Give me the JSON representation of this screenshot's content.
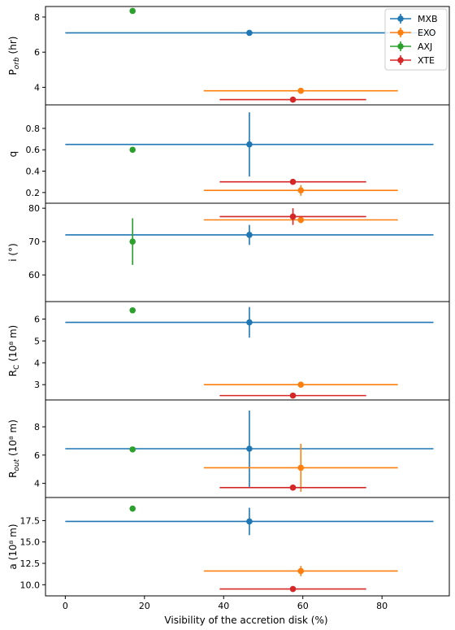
{
  "chart_data": {
    "type": "scatter",
    "xlabel": "Visibility of the accretion disk (%)",
    "xlim": [
      -5,
      97
    ],
    "xticks": [
      0,
      20,
      40,
      60,
      80
    ],
    "legend": {
      "placement": "top-right",
      "entries": [
        "MXB",
        "EXO",
        "AXJ",
        "XTE"
      ]
    },
    "series": [
      {
        "name": "MXB",
        "color": "#1f77b4",
        "x": 46.5,
        "xerr": [
          46.5,
          46.5
        ]
      },
      {
        "name": "EXO",
        "color": "#ff7f0e",
        "x": 59.5,
        "xerr": [
          24.5,
          24.5
        ]
      },
      {
        "name": "AXJ",
        "color": "#2ca02c",
        "x": 17,
        "xerr": [
          0,
          0
        ]
      },
      {
        "name": "XTE",
        "color": "#d62728",
        "x": 57.5,
        "xerr": [
          18.5,
          18.5
        ]
      }
    ],
    "panels": [
      {
        "ylabel_main": "P",
        "ylabel_sub": "orb",
        "ylabel_tail": " (hr)",
        "ylim": [
          3.0,
          8.6
        ],
        "yticks": [
          4,
          6,
          8
        ],
        "ytick_labels": [
          "4",
          "6",
          "8"
        ],
        "y": {
          "MXB": 7.1,
          "EXO": 3.8,
          "AXJ": 8.35,
          "XTE": 3.3
        },
        "yerr": {
          "MXB": 0,
          "EXO": 0,
          "AXJ": 0,
          "XTE": 0
        }
      },
      {
        "ylabel_main": "q",
        "ylabel_sub": "",
        "ylabel_tail": "",
        "ylim": [
          0.1,
          1.02
        ],
        "yticks": [
          0.2,
          0.4,
          0.6,
          0.8
        ],
        "ytick_labels": [
          "0.2",
          "0.4",
          "0.6",
          "0.8"
        ],
        "y": {
          "MXB": 0.65,
          "EXO": 0.22,
          "AXJ": 0.6,
          "XTE": 0.3
        },
        "yerr": {
          "MXB": 0.3,
          "EXO": 0.05,
          "AXJ": 0,
          "XTE": 0
        }
      },
      {
        "ylabel_main": "i (°)",
        "ylabel_sub": "",
        "ylabel_tail": "",
        "ylim": [
          52,
          81.5
        ],
        "yticks": [
          60,
          70,
          80
        ],
        "ytick_labels": [
          "60",
          "70",
          "80"
        ],
        "y": {
          "MXB": 72,
          "EXO": 76.5,
          "AXJ": 70,
          "XTE": 77.5
        },
        "yerr": {
          "MXB": 3,
          "EXO": 1,
          "AXJ": 7,
          "XTE": 2.5
        }
      },
      {
        "ylabel_main": "R",
        "ylabel_sub": "C",
        "ylabel_tail": " (10⁸ m)",
        "ylim": [
          2.3,
          6.8
        ],
        "yticks": [
          3,
          4,
          5,
          6
        ],
        "ytick_labels": [
          "3",
          "4",
          "5",
          "6"
        ],
        "y": {
          "MXB": 5.85,
          "EXO": 3.0,
          "AXJ": 6.4,
          "XTE": 2.5
        },
        "yerr": {
          "MXB": 0.7,
          "EXO": 0,
          "AXJ": 0,
          "XTE": 0
        }
      },
      {
        "ylabel_main": "R",
        "ylabel_sub": "out",
        "ylabel_tail": " (10⁸ m)",
        "ylim": [
          3.0,
          9.9
        ],
        "yticks": [
          4,
          6,
          8
        ],
        "ytick_labels": [
          "4",
          "6",
          "8"
        ],
        "y": {
          "MXB": 6.45,
          "EXO": 5.1,
          "AXJ": 6.4,
          "XTE": 3.7
        },
        "yerr": {
          "MXB": 2.7,
          "EXO": 1.7,
          "AXJ": 0,
          "XTE": 0
        }
      },
      {
        "ylabel_main": "a (10⁸ m)",
        "ylabel_sub": "",
        "ylabel_tail": "",
        "ylim": [
          8.7,
          20.2
        ],
        "yticks": [
          10.0,
          12.5,
          15.0,
          17.5
        ],
        "ytick_labels": [
          "10.0",
          "12.5",
          "15.0",
          "17.5"
        ],
        "y": {
          "MXB": 17.4,
          "EXO": 11.6,
          "AXJ": 18.9,
          "XTE": 9.5
        },
        "yerr": {
          "MXB": 1.6,
          "EXO": 0.6,
          "AXJ": 0,
          "XTE": 0
        }
      }
    ]
  }
}
